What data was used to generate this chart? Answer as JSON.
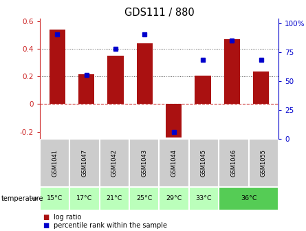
{
  "title": "GDS111 / 880",
  "samples": [
    "GSM1041",
    "GSM1047",
    "GSM1042",
    "GSM1043",
    "GSM1044",
    "GSM1045",
    "GSM1046",
    "GSM1055"
  ],
  "log_ratio": [
    0.54,
    0.215,
    0.35,
    0.44,
    -0.24,
    0.205,
    0.47,
    0.235
  ],
  "percentile": [
    90,
    55,
    78,
    90,
    6,
    68,
    85,
    68
  ],
  "bar_color": "#aa1111",
  "dot_color": "#0000cc",
  "ylim_left": [
    -0.25,
    0.62
  ],
  "ylim_right": [
    0,
    104
  ],
  "yticks_left": [
    -0.2,
    0.0,
    0.2,
    0.4,
    0.6
  ],
  "yticks_right": [
    0,
    25,
    50,
    75,
    100
  ],
  "sample_bg_color": "#cccccc",
  "temp_groups": [
    {
      "label": "15°C",
      "start": 0,
      "end": 1,
      "color": "#bbffbb"
    },
    {
      "label": "17°C",
      "start": 1,
      "end": 2,
      "color": "#bbffbb"
    },
    {
      "label": "21°C",
      "start": 2,
      "end": 3,
      "color": "#bbffbb"
    },
    {
      "label": "25°C",
      "start": 3,
      "end": 4,
      "color": "#bbffbb"
    },
    {
      "label": "29°C",
      "start": 4,
      "end": 5,
      "color": "#bbffbb"
    },
    {
      "label": "33°C",
      "start": 5,
      "end": 6,
      "color": "#bbffbb"
    },
    {
      "label": "36°C",
      "start": 6,
      "end": 8,
      "color": "#55cc55"
    }
  ],
  "legend_label_bar": "log ratio",
  "legend_label_dot": "percentile rank within the sample",
  "temperature_label": "temperature"
}
